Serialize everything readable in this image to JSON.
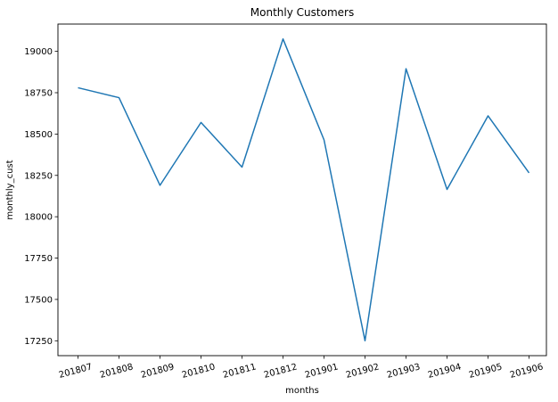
{
  "chart_data": {
    "type": "line",
    "title": "Monthly Customers",
    "xlabel": "months",
    "ylabel": "monthly_cust",
    "categories": [
      "201807",
      "201808",
      "201809",
      "201810",
      "201811",
      "201812",
      "201901",
      "201902",
      "201903",
      "201904",
      "201905",
      "201906"
    ],
    "series": [
      {
        "values": [
          18780,
          18720,
          18190,
          18570,
          18300,
          19075,
          18465,
          17250,
          18895,
          18165,
          18610,
          18265
        ],
        "color": "#1f77b4"
      }
    ],
    "yticks": [
      17250,
      17500,
      17750,
      18000,
      18250,
      18500,
      18750,
      19000
    ],
    "ylim": [
      17160,
      19165
    ],
    "x_tick_rotation_deg": -15,
    "grid": false,
    "legend": "none"
  }
}
